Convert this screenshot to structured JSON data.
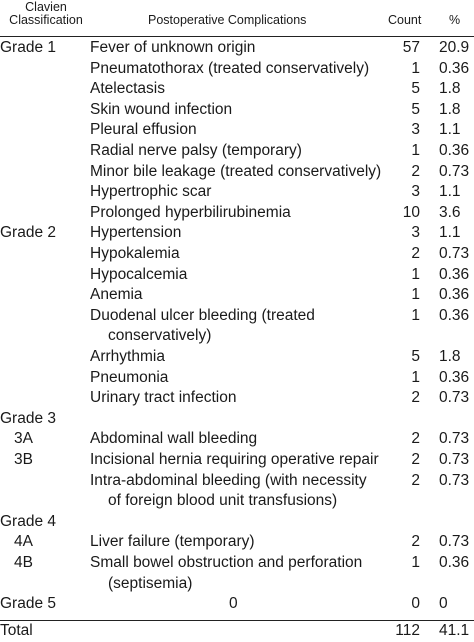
{
  "table": {
    "headers": {
      "classification_line1": "Clavien",
      "classification_line2": "Classification",
      "complications": "Postoperative Complications",
      "count": "Count",
      "percent": "%"
    },
    "rows": [
      {
        "grade": "Grade 1",
        "complication": "Fever of unknown origin",
        "count": "57",
        "percent": "20.9"
      },
      {
        "grade": "",
        "complication": "Pneumatothorax (treated conservatively)",
        "count": "1",
        "percent": "0.36"
      },
      {
        "grade": "",
        "complication": "Atelectasis",
        "count": "5",
        "percent": "1.8"
      },
      {
        "grade": "",
        "complication": "Skin wound infection",
        "count": "5",
        "percent": "1.8"
      },
      {
        "grade": "",
        "complication": "Pleural effusion",
        "count": "3",
        "percent": "1.1"
      },
      {
        "grade": "",
        "complication": "Radial nerve palsy (temporary)",
        "count": "1",
        "percent": "0.36"
      },
      {
        "grade": "",
        "complication": "Minor bile leakage (treated conservatively)",
        "count": "2",
        "percent": "0.73"
      },
      {
        "grade": "",
        "complication": "Hypertrophic scar",
        "count": "3",
        "percent": "1.1"
      },
      {
        "grade": "",
        "complication": "Prolonged hyperbilirubinemia",
        "count": "10",
        "percent": "3.6"
      },
      {
        "grade": "Grade 2",
        "complication": "Hypertension",
        "count": "3",
        "percent": "1.1"
      },
      {
        "grade": "",
        "complication": "Hypokalemia",
        "count": "2",
        "percent": "0.73"
      },
      {
        "grade": "",
        "complication": "Hypocalcemia",
        "count": "1",
        "percent": "0.36"
      },
      {
        "grade": "",
        "complication": "Anemia",
        "count": "1",
        "percent": "0.36"
      },
      {
        "grade": "",
        "complication": "Duodenal ulcer bleeding (treated",
        "complication_cont": "conservatively)",
        "count": "1",
        "percent": "0.36"
      },
      {
        "grade": "",
        "complication": "Arrhythmia",
        "count": "5",
        "percent": "1.8"
      },
      {
        "grade": "",
        "complication": "Pneumonia",
        "count": "1",
        "percent": "0.36"
      },
      {
        "grade": "",
        "complication": "Urinary tract infection",
        "count": "2",
        "percent": "0.73"
      },
      {
        "grade": "Grade 3",
        "complication": "",
        "count": "",
        "percent": ""
      },
      {
        "grade": "3A",
        "complication": "Abdominal wall bleeding",
        "count": "2",
        "percent": "0.73"
      },
      {
        "grade": "3B",
        "complication": "Incisional hernia requiring operative repair",
        "count": "2",
        "percent": "0.73"
      },
      {
        "grade": "",
        "complication": "Intra-abdominal bleeding (with necessity",
        "complication_cont": "of foreign blood unit transfusions)",
        "count": "2",
        "percent": "0.73"
      },
      {
        "grade": "Grade 4",
        "complication": "",
        "count": "",
        "percent": ""
      },
      {
        "grade": "4A",
        "complication": "Liver failure (temporary)",
        "count": "2",
        "percent": "0.73"
      },
      {
        "grade": "4B",
        "complication": "Small bowel obstruction and perforation",
        "complication_cont": "(septisemia)",
        "count": "1",
        "percent": "0.36"
      },
      {
        "grade": "Grade 5",
        "complication": "0",
        "count": "0",
        "percent": "0"
      },
      {
        "grade": "Total",
        "complication": "",
        "count": "112",
        "percent": "41.1"
      }
    ]
  }
}
